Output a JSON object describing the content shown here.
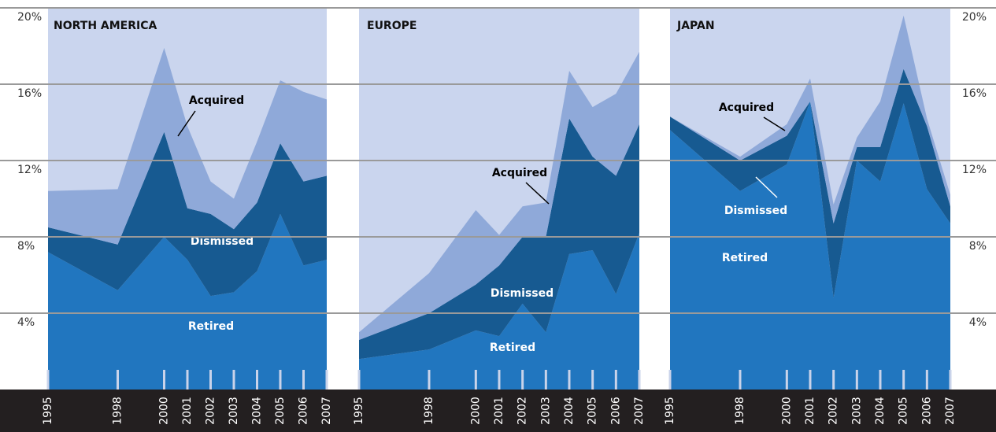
{
  "chart_data": [
    {
      "type": "area",
      "stacked": true,
      "title": "NORTH AMERICA",
      "x": [
        1995,
        1998,
        2000,
        2001,
        2002,
        2003,
        2004,
        2005,
        2006,
        2007
      ],
      "xlim": [
        1995,
        2007
      ],
      "ylim": [
        0,
        20
      ],
      "yticks": [
        {
          "value": 4,
          "label": "4%"
        },
        {
          "value": 8,
          "label": "8%"
        },
        {
          "value": 12,
          "label": "12%"
        },
        {
          "value": 16,
          "label": "16%"
        },
        {
          "value": 20,
          "label": "20%"
        }
      ],
      "grid": true,
      "background": "#cad5ee",
      "series": [
        {
          "name": "Retired",
          "color": "#2176bf",
          "values": [
            7.2,
            5.2,
            8.0,
            6.8,
            4.9,
            5.1,
            6.2,
            9.2,
            6.5,
            6.8
          ]
        },
        {
          "name": "Dismissed",
          "color": "#175a91",
          "values": [
            1.3,
            2.4,
            5.5,
            2.7,
            4.3,
            3.3,
            3.6,
            3.7,
            4.4,
            4.4
          ]
        },
        {
          "name": "Acquired",
          "color": "#8fa9d9",
          "values": [
            1.9,
            2.9,
            4.4,
            4.3,
            1.7,
            1.6,
            3.2,
            3.3,
            4.7,
            4.0
          ]
        }
      ]
    },
    {
      "type": "area",
      "stacked": true,
      "title": "EUROPE",
      "x": [
        1995,
        1998,
        2000,
        2001,
        2002,
        2003,
        2004,
        2005,
        2006,
        2007
      ],
      "xlim": [
        1995,
        2007
      ],
      "ylim": [
        0,
        20
      ],
      "background": "#cad5ee",
      "series": [
        {
          "name": "Retired",
          "color": "#2176bf",
          "values": [
            1.6,
            2.1,
            3.1,
            2.8,
            4.5,
            3.0,
            7.1,
            7.3,
            5.0,
            8.2
          ]
        },
        {
          "name": "Dismissed",
          "color": "#175a91",
          "values": [
            1.0,
            1.9,
            2.4,
            3.7,
            3.5,
            5.0,
            7.1,
            4.9,
            6.2,
            5.7
          ]
        },
        {
          "name": "Acquired",
          "color": "#8fa9d9",
          "values": [
            0.4,
            2.1,
            3.9,
            1.6,
            1.6,
            1.8,
            2.5,
            2.6,
            4.3,
            3.8
          ]
        }
      ]
    },
    {
      "type": "area",
      "stacked": true,
      "title": "JAPAN",
      "x": [
        1995,
        1998,
        2000,
        2001,
        2002,
        2003,
        2004,
        2005,
        2006,
        2007
      ],
      "xlim": [
        1995,
        2007
      ],
      "ylim": [
        0,
        20
      ],
      "yticks": [
        {
          "value": 4,
          "label": "4%"
        },
        {
          "value": 8,
          "label": "8%"
        },
        {
          "value": 12,
          "label": "12%"
        },
        {
          "value": 16,
          "label": "16%"
        },
        {
          "value": 20,
          "label": "20%"
        }
      ],
      "background": "#cad5ee",
      "series": [
        {
          "name": "Retired",
          "color": "#2176bf",
          "values": [
            13.6,
            10.4,
            11.8,
            15.1,
            4.8,
            12.0,
            10.9,
            15.0,
            10.5,
            8.7
          ]
        },
        {
          "name": "Dismissed",
          "color": "#175a91",
          "values": [
            0.7,
            1.6,
            1.5,
            0.0,
            3.9,
            0.7,
            1.8,
            1.8,
            3.3,
            0.9
          ]
        },
        {
          "name": "Acquired",
          "color": "#8fa9d9",
          "values": [
            0.0,
            0.2,
            0.6,
            1.2,
            1.0,
            0.5,
            2.4,
            2.8,
            0.4,
            0.6
          ]
        }
      ]
    }
  ]
}
